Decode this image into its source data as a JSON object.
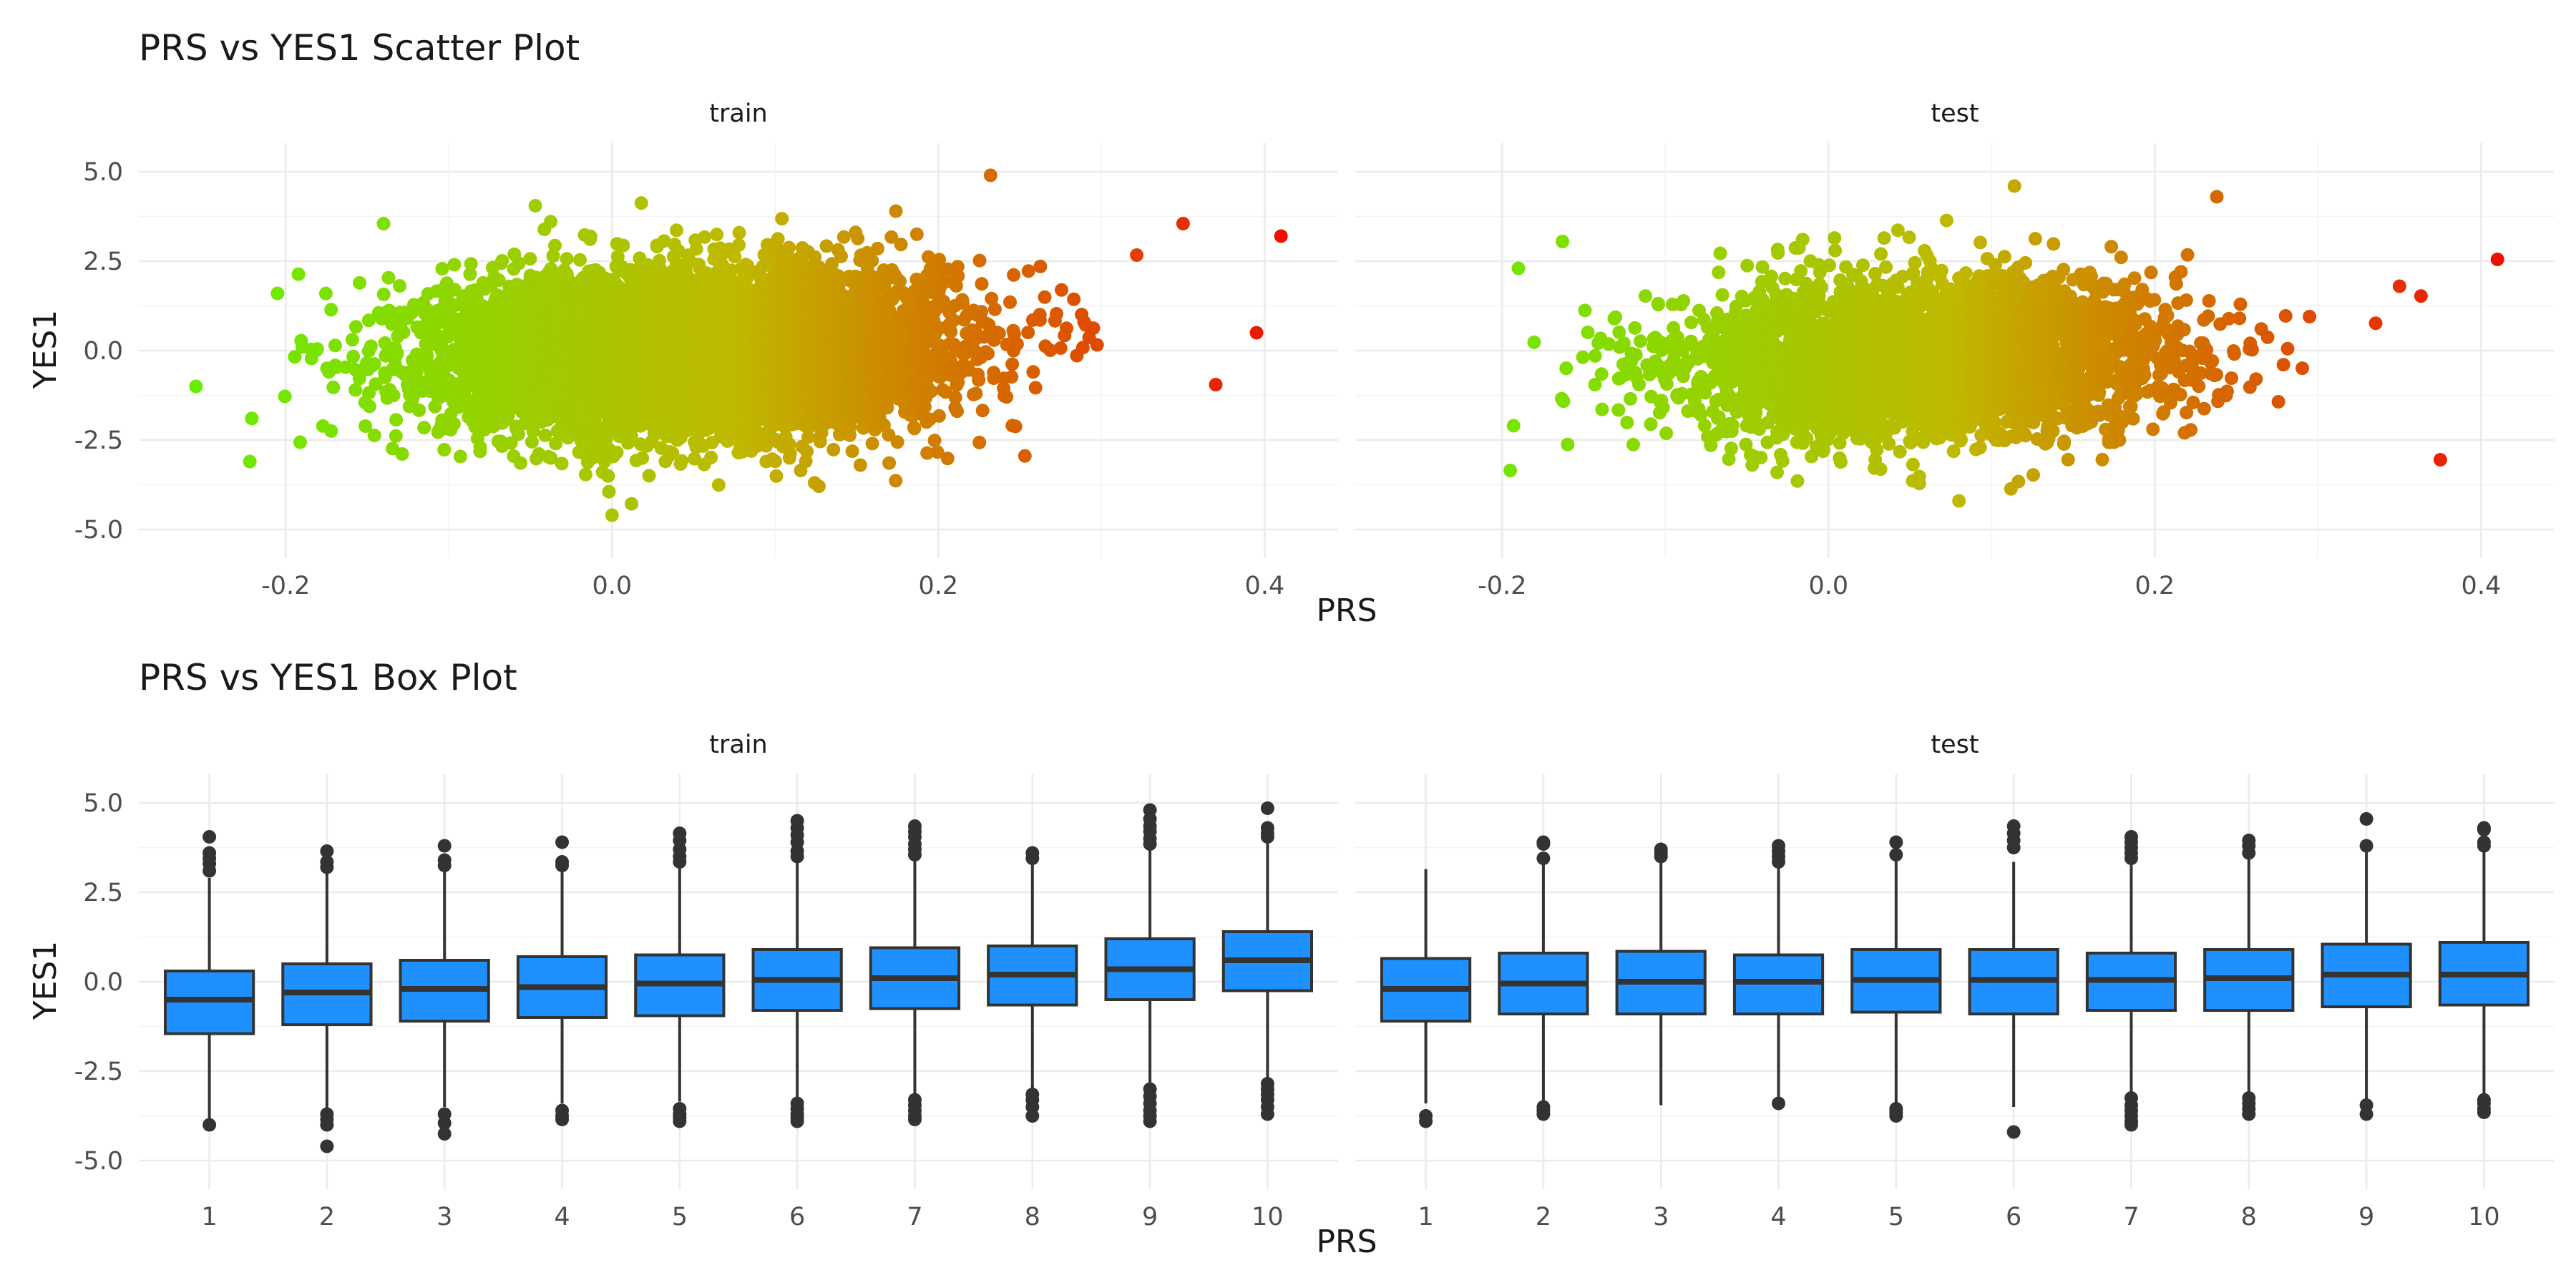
{
  "colors": {
    "low": "#66ee00",
    "mid": "#c0b800",
    "high": "#ee1100",
    "box_fill": "#1e90ff",
    "box_line": "#333333",
    "outlier": "#333333"
  },
  "chart_data": [
    {
      "type": "scatter",
      "title": "PRS vs YES1 Scatter Plot",
      "xlabel": "PRS",
      "ylabel": "YES1",
      "facets": [
        "train",
        "test"
      ],
      "xticks": [
        "-0.2",
        "0.0",
        "0.2",
        "0.4"
      ],
      "yticks": [
        "-5.0",
        "-2.5",
        "0.0",
        "2.5",
        "5.0"
      ],
      "xlim": [
        -0.29,
        0.45
      ],
      "ylim": [
        -5.0,
        5.0
      ],
      "color_scale": "continuous gradient by PRS (green low, red high)",
      "series": [
        {
          "facet": "train",
          "n_points_approx": 40000,
          "x_center": 0.05,
          "x_sd": 0.075,
          "y_intercept": 0.0,
          "y_slope": 4.0,
          "y_sd": 1.1,
          "extreme_points": [
            {
              "x": -0.255,
              "y": -1.0
            },
            {
              "x": -0.222,
              "y": -3.1
            },
            {
              "x": -0.205,
              "y": 1.6
            },
            {
              "x": -0.14,
              "y": 3.55
            },
            {
              "x": -0.047,
              "y": 4.05
            },
            {
              "x": 0.232,
              "y": 4.9
            },
            {
              "x": 0.35,
              "y": 3.55
            },
            {
              "x": 0.41,
              "y": 3.2
            },
            {
              "x": 0.395,
              "y": 0.5
            },
            {
              "x": 0.37,
              "y": -0.95
            },
            {
              "x": 0.0,
              "y": -4.6
            }
          ]
        },
        {
          "facet": "test",
          "n_points_approx": 10000,
          "x_center": 0.06,
          "x_sd": 0.075,
          "y_intercept": -0.25,
          "y_slope": 3.0,
          "y_sd": 1.1,
          "extreme_points": [
            {
              "x": -0.195,
              "y": -3.35
            },
            {
              "x": -0.193,
              "y": -2.1
            },
            {
              "x": -0.19,
              "y": 2.3
            },
            {
              "x": -0.163,
              "y": 3.05
            },
            {
              "x": 0.114,
              "y": 4.6
            },
            {
              "x": 0.238,
              "y": 4.3
            },
            {
              "x": 0.35,
              "y": 1.8
            },
            {
              "x": 0.375,
              "y": -3.05
            },
            {
              "x": 0.41,
              "y": 2.55
            },
            {
              "x": 0.08,
              "y": -4.2
            }
          ]
        }
      ]
    },
    {
      "type": "box",
      "title": "PRS vs YES1 Box Plot",
      "xlabel": "PRS",
      "ylabel": "YES1",
      "facets": [
        "train",
        "test"
      ],
      "categories": [
        "1",
        "2",
        "3",
        "4",
        "5",
        "6",
        "7",
        "8",
        "9",
        "10"
      ],
      "yticks": [
        "-5.0",
        "-2.5",
        "0.0",
        "2.5",
        "5.0"
      ],
      "ylim": [
        -5.0,
        5.0
      ],
      "series": [
        {
          "facet": "train",
          "boxes": [
            {
              "q1": -1.45,
              "median": -0.5,
              "q3": 0.3,
              "whisker_low": -3.9,
              "whisker_high": 2.9,
              "outliers": [
                4.05,
                3.6,
                3.45,
                3.3,
                3.1,
                -4.0
              ]
            },
            {
              "q1": -1.2,
              "median": -0.3,
              "q3": 0.5,
              "whisker_low": -3.6,
              "whisker_high": 3.1,
              "outliers": [
                3.65,
                3.35,
                3.2,
                -3.7,
                -3.85,
                -4.0,
                -4.6
              ]
            },
            {
              "q1": -1.1,
              "median": -0.2,
              "q3": 0.6,
              "whisker_low": -3.5,
              "whisker_high": 3.1,
              "outliers": [
                3.8,
                3.4,
                3.25,
                -3.7,
                -3.95,
                -4.25
              ]
            },
            {
              "q1": -1.0,
              "median": -0.15,
              "q3": 0.7,
              "whisker_low": -3.4,
              "whisker_high": 3.2,
              "outliers": [
                3.9,
                3.35,
                3.25,
                -3.6,
                -3.75,
                -3.85
              ]
            },
            {
              "q1": -0.95,
              "median": -0.05,
              "q3": 0.75,
              "whisker_low": -3.35,
              "whisker_high": 3.3,
              "outliers": [
                4.15,
                3.95,
                3.7,
                3.5,
                3.35,
                -3.55,
                -3.7,
                -3.8,
                -3.9
              ]
            },
            {
              "q1": -0.8,
              "median": 0.05,
              "q3": 0.9,
              "whisker_low": -3.25,
              "whisker_high": 3.45,
              "outliers": [
                4.5,
                4.3,
                4.1,
                3.9,
                3.65,
                3.5,
                -3.4,
                -3.55,
                -3.7,
                -3.8,
                -3.9
              ]
            },
            {
              "q1": -0.75,
              "median": 0.1,
              "q3": 0.95,
              "whisker_low": -3.2,
              "whisker_high": 3.5,
              "outliers": [
                4.35,
                4.2,
                4.05,
                3.85,
                3.7,
                3.55,
                -3.3,
                -3.45,
                -3.6,
                -3.75,
                -3.85
              ]
            },
            {
              "q1": -0.65,
              "median": 0.2,
              "q3": 1.0,
              "whisker_low": -3.0,
              "whisker_high": 3.4,
              "outliers": [
                3.6,
                3.45,
                -3.15,
                -3.3,
                -3.5,
                -3.75
              ]
            },
            {
              "q1": -0.5,
              "median": 0.35,
              "q3": 1.2,
              "whisker_low": -2.95,
              "whisker_high": 3.7,
              "outliers": [
                4.8,
                4.55,
                4.35,
                4.2,
                4.0,
                3.85,
                -3.0,
                -3.2,
                -3.4,
                -3.6,
                -3.75,
                -3.9
              ]
            },
            {
              "q1": -0.25,
              "median": 0.6,
              "q3": 1.4,
              "whisker_low": -2.75,
              "whisker_high": 3.9,
              "outliers": [
                4.85,
                4.3,
                4.15,
                4.05,
                -2.85,
                -3.0,
                -3.15,
                -3.3,
                -3.5,
                -3.7
              ]
            }
          ]
        },
        {
          "facet": "test",
          "boxes": [
            {
              "q1": -1.1,
              "median": -0.2,
              "q3": 0.65,
              "whisker_low": -3.4,
              "whisker_high": 3.15,
              "outliers": [
                -3.75,
                -3.9
              ]
            },
            {
              "q1": -0.9,
              "median": -0.05,
              "q3": 0.8,
              "whisker_low": -3.4,
              "whisker_high": 3.3,
              "outliers": [
                3.9,
                3.85,
                3.45,
                -3.5,
                -3.6,
                -3.7
              ]
            },
            {
              "q1": -0.9,
              "median": 0.0,
              "q3": 0.85,
              "whisker_low": -3.45,
              "whisker_high": 3.45,
              "outliers": [
                3.7,
                3.6,
                3.5
              ]
            },
            {
              "q1": -0.9,
              "median": 0.0,
              "q3": 0.75,
              "whisker_low": -3.3,
              "whisker_high": 3.3,
              "outliers": [
                3.8,
                3.65,
                3.5,
                3.35,
                -3.4
              ]
            },
            {
              "q1": -0.85,
              "median": 0.05,
              "q3": 0.9,
              "whisker_low": -3.4,
              "whisker_high": 3.4,
              "outliers": [
                3.9,
                3.55,
                -3.55,
                -3.65,
                -3.75
              ]
            },
            {
              "q1": -0.9,
              "median": 0.05,
              "q3": 0.9,
              "whisker_low": -3.5,
              "whisker_high": 3.35,
              "outliers": [
                4.35,
                4.15,
                3.95,
                3.75,
                -4.2
              ]
            },
            {
              "q1": -0.8,
              "median": 0.05,
              "q3": 0.8,
              "whisker_low": -3.15,
              "whisker_high": 3.3,
              "outliers": [
                4.05,
                3.9,
                3.75,
                3.6,
                3.45,
                -3.25,
                -3.45,
                -3.6,
                -3.75,
                -3.9,
                -4.0
              ]
            },
            {
              "q1": -0.8,
              "median": 0.1,
              "q3": 0.9,
              "whisker_low": -3.1,
              "whisker_high": 3.45,
              "outliers": [
                3.95,
                3.8,
                3.6,
                -3.25,
                -3.4,
                -3.55,
                -3.7
              ]
            },
            {
              "q1": -0.7,
              "median": 0.2,
              "q3": 1.05,
              "whisker_low": -3.3,
              "whisker_high": 3.75,
              "outliers": [
                4.55,
                3.8,
                -3.45,
                -3.7
              ]
            },
            {
              "q1": -0.65,
              "median": 0.2,
              "q3": 1.1,
              "whisker_low": -3.15,
              "whisker_high": 3.8,
              "outliers": [
                4.3,
                4.25,
                3.9,
                3.8,
                -3.3,
                -3.4,
                -3.55,
                -3.65
              ]
            }
          ]
        }
      ]
    }
  ]
}
